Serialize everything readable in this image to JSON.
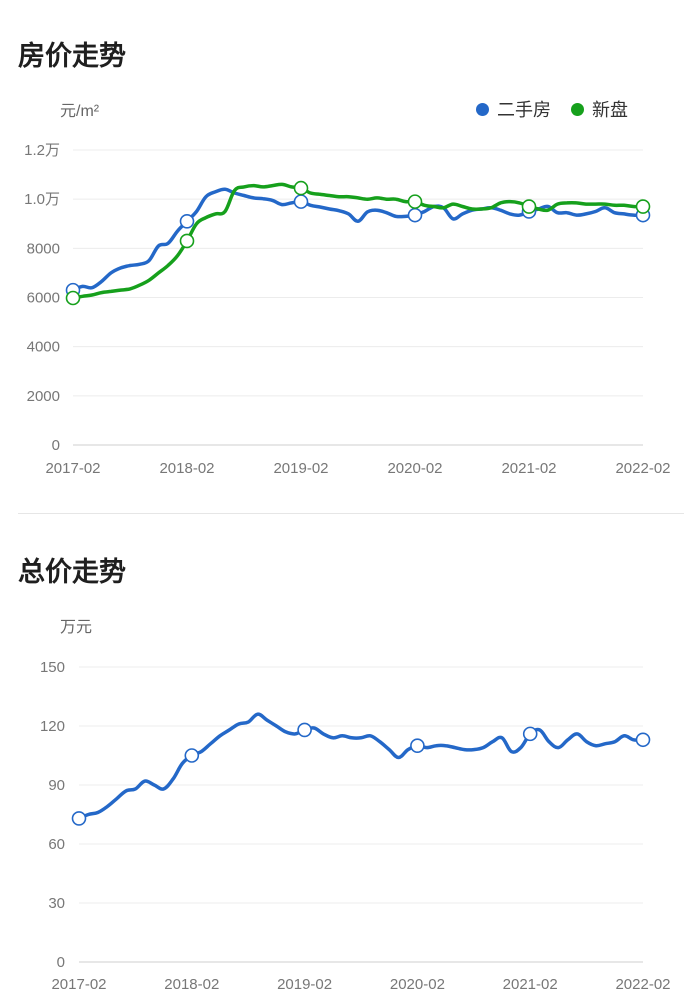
{
  "charts": {
    "price": {
      "title": "房价走势",
      "unit": "元/m²",
      "legend": [
        {
          "name": "二手房",
          "color": "#2468c8"
        },
        {
          "name": "新盘",
          "color": "#16a01c"
        }
      ]
    },
    "total": {
      "title": "总价走势",
      "unit": "万元"
    }
  },
  "chart_data": [
    {
      "type": "line",
      "title": "房价走势",
      "ylabel": "元/m²",
      "ylim": [
        0,
        12000
      ],
      "yticks": [
        0,
        2000,
        4000,
        6000,
        8000,
        10000,
        12000
      ],
      "ytick_labels": [
        "0",
        "2000",
        "4000",
        "6000",
        "8000",
        "1.0万",
        "1.2万"
      ],
      "xlim": [
        0,
        60
      ],
      "xticks": [
        0,
        12,
        24,
        36,
        48,
        60
      ],
      "xtick_labels": [
        "2017-02",
        "2018-02",
        "2019-02",
        "2020-02",
        "2021-02",
        "2022-02"
      ],
      "legend_position": "top-right",
      "grid": true,
      "series": [
        {
          "name": "二手房",
          "color": "#2468c8",
          "x": [
            0,
            1,
            2,
            3,
            4,
            5,
            6,
            7,
            8,
            9,
            10,
            11,
            12,
            13,
            14,
            15,
            16,
            17,
            18,
            19,
            20,
            21,
            22,
            23,
            24,
            25,
            26,
            27,
            28,
            29,
            30,
            31,
            32,
            33,
            34,
            35,
            36,
            37,
            38,
            39,
            40,
            41,
            42,
            43,
            44,
            45,
            46,
            47,
            48,
            49,
            50,
            51,
            52,
            53,
            54,
            55,
            56,
            57,
            58,
            59,
            60
          ],
          "values": [
            6300,
            6450,
            6400,
            6650,
            7000,
            7200,
            7300,
            7350,
            7500,
            8100,
            8200,
            8700,
            9100,
            9500,
            10100,
            10300,
            10400,
            10250,
            10150,
            10050,
            10020,
            9950,
            9780,
            9850,
            9900,
            9750,
            9680,
            9600,
            9530,
            9400,
            9100,
            9480,
            9550,
            9450,
            9300,
            9300,
            9350,
            9500,
            9700,
            9650,
            9200,
            9400,
            9550,
            9600,
            9650,
            9550,
            9400,
            9350,
            9500,
            9600,
            9700,
            9450,
            9450,
            9350,
            9400,
            9500,
            9650,
            9450,
            9400,
            9350,
            9350
          ],
          "markers": [
            0,
            12,
            24,
            36,
            48,
            60
          ]
        },
        {
          "name": "新盘",
          "color": "#16a01c",
          "x": [
            0,
            1,
            2,
            3,
            4,
            5,
            6,
            7,
            8,
            9,
            10,
            11,
            12,
            13,
            14,
            15,
            16,
            17,
            18,
            19,
            20,
            21,
            22,
            23,
            24,
            25,
            26,
            27,
            28,
            29,
            30,
            31,
            32,
            33,
            34,
            35,
            36,
            37,
            38,
            39,
            40,
            41,
            42,
            43,
            44,
            45,
            46,
            47,
            48,
            49,
            50,
            51,
            52,
            53,
            54,
            55,
            56,
            57,
            58,
            59,
            60
          ],
          "values": [
            5980,
            6050,
            6100,
            6200,
            6250,
            6300,
            6350,
            6500,
            6700,
            7000,
            7300,
            7700,
            8300,
            9000,
            9250,
            9400,
            9500,
            10350,
            10500,
            10550,
            10500,
            10550,
            10600,
            10500,
            10450,
            10250,
            10200,
            10150,
            10100,
            10100,
            10050,
            10000,
            10050,
            10000,
            10000,
            9900,
            9900,
            9750,
            9700,
            9650,
            9800,
            9700,
            9600,
            9600,
            9650,
            9850,
            9900,
            9850,
            9700,
            9600,
            9550,
            9800,
            9850,
            9850,
            9800,
            9800,
            9800,
            9750,
            9750,
            9700,
            9700
          ],
          "markers": [
            0,
            12,
            24,
            36,
            48,
            60
          ]
        }
      ]
    },
    {
      "type": "line",
      "title": "总价走势",
      "ylabel": "万元",
      "ylim": [
        0,
        150
      ],
      "yticks": [
        0,
        30,
        60,
        90,
        120,
        150
      ],
      "ytick_labels": [
        "0",
        "30",
        "60",
        "90",
        "120",
        "150"
      ],
      "xlim": [
        0,
        60
      ],
      "xticks": [
        0,
        12,
        24,
        36,
        48,
        60
      ],
      "xtick_labels": [
        "2017-02",
        "2018-02",
        "2019-02",
        "2020-02",
        "2021-02",
        "2022-02"
      ],
      "grid": true,
      "series": [
        {
          "name": "",
          "color": "#2468c8",
          "x": [
            0,
            1,
            2,
            3,
            4,
            5,
            6,
            7,
            8,
            9,
            10,
            11,
            12,
            13,
            14,
            15,
            16,
            17,
            18,
            19,
            20,
            21,
            22,
            23,
            24,
            25,
            26,
            27,
            28,
            29,
            30,
            31,
            32,
            33,
            34,
            35,
            36,
            37,
            38,
            39,
            40,
            41,
            42,
            43,
            44,
            45,
            46,
            47,
            48,
            49,
            50,
            51,
            52,
            53,
            54,
            55,
            56,
            57,
            58,
            59,
            60
          ],
          "values": [
            73,
            75,
            76,
            79,
            83,
            87,
            88,
            92,
            90,
            88,
            93,
            101,
            105,
            107,
            111,
            115,
            118,
            121,
            122,
            126,
            123,
            120,
            117,
            116,
            118,
            119,
            116,
            114,
            115,
            114,
            114,
            115,
            112,
            108,
            104,
            108,
            110,
            109,
            110,
            110,
            109,
            108,
            108,
            109,
            112,
            114,
            107,
            109,
            116,
            118,
            112,
            109,
            113,
            116,
            112,
            110,
            111,
            112,
            115,
            113,
            113
          ],
          "markers": [
            0,
            12,
            24,
            36,
            48,
            60
          ]
        }
      ]
    }
  ]
}
